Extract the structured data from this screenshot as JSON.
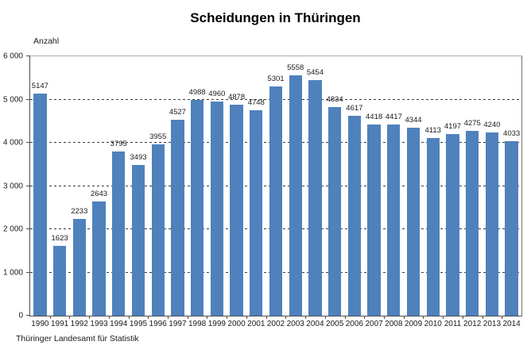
{
  "chart_data": {
    "type": "bar",
    "title": "Scheidungen in Thüringen",
    "ylabel": "Anzahl",
    "source": "Thüringer Landesamt für Statistik",
    "categories": [
      "1990",
      "1991",
      "1992",
      "1993",
      "1994",
      "1995",
      "1996",
      "1997",
      "1998",
      "1999",
      "2000",
      "2001",
      "2002",
      "2003",
      "2004",
      "2005",
      "2006",
      "2007",
      "2008",
      "2009",
      "2010",
      "2011",
      "2012",
      "2013",
      "2014"
    ],
    "values": [
      5147,
      1623,
      2233,
      2643,
      3795,
      3493,
      3955,
      4527,
      4988,
      4960,
      4878,
      4748,
      5301,
      5558,
      5454,
      4834,
      4617,
      4418,
      4417,
      4344,
      4113,
      4197,
      4275,
      4240,
      4033
    ],
    "ylim": [
      0,
      6000
    ],
    "ytick_step": 1000,
    "ytick_labels": [
      "0",
      "1 000",
      "2 000",
      "3 000",
      "4 000",
      "5 000",
      "6 000"
    ],
    "bar_color": "#4F81BD",
    "grid": "horizontal dashed lines at 1000..5000, solid gray top line at 6000",
    "legend": "none",
    "data_labels": "value above each bar"
  }
}
